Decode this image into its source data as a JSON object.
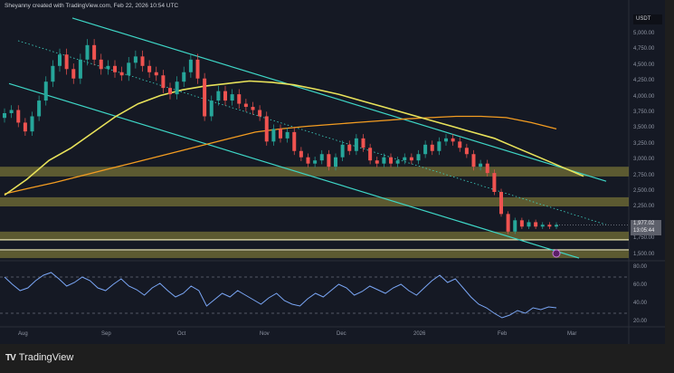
{
  "header": {
    "text": "Sheyanny created with TradingView.com, Feb 22, 2026 10:54 UTC"
  },
  "footer": {
    "logo_text": "TradingView"
  },
  "colors": {
    "background": "#151924",
    "bull": "#26a69a",
    "bear": "#ef5350",
    "channel": "#3ed6c6",
    "ma_fast": "#e8e25a",
    "ma_slow": "#f39c21",
    "zone": "#6e6a35",
    "rsi": "#7aa6f5"
  },
  "chart_data": [
    {
      "type": "candlestick",
      "title": "",
      "quote_unit": "USDT",
      "x_ticks": [
        "Aug",
        "Sep",
        "Oct",
        "Nov",
        "Dec",
        "2026",
        "Feb",
        "Mar"
      ],
      "y_ticks": [
        "5,000.00",
        "4,750.00",
        "4,500.00",
        "4,250.00",
        "4,000.00",
        "3,750.00",
        "3,500.00",
        "3,250.00",
        "3,000.00",
        "2,750.00",
        "2,500.00",
        "2,250.00",
        "1,750.00",
        "1,500.00"
      ],
      "ylim": [
        1400,
        5100
      ],
      "last_price": "1,977.02",
      "countdown": "13:05:44",
      "closes": [
        3750,
        3800,
        3600,
        3460,
        3700,
        3950,
        4250,
        4500,
        4680,
        4450,
        4300,
        4600,
        4830,
        4600,
        4450,
        4500,
        4400,
        4350,
        4550,
        4650,
        4500,
        4400,
        4350,
        4150,
        4050,
        4250,
        4400,
        4600,
        4300,
        3700,
        3950,
        4100,
        3950,
        4050,
        3900,
        3850,
        3800,
        3700,
        3300,
        3500,
        3350,
        3450,
        3150,
        3050,
        2950,
        3000,
        3100,
        2900,
        3050,
        3250,
        3150,
        3350,
        3200,
        3000,
        2950,
        3050,
        2950,
        3000,
        3050,
        3000,
        3100,
        3250,
        3150,
        3300,
        3350,
        3300,
        3200,
        3100,
        2900,
        2950,
        2800,
        2500,
        2150,
        1870,
        2050,
        1950,
        2020,
        1950,
        1980,
        1950,
        1977
      ],
      "ma_fast": [
        2450,
        2700,
        3000,
        3200,
        3450,
        3700,
        3900,
        4030,
        4120,
        4180,
        4220,
        4260,
        4240,
        4200,
        4130,
        4050,
        3950,
        3850,
        3750,
        3650,
        3550,
        3450,
        3350,
        3200,
        3050,
        2900,
        2750
      ],
      "ma_slow": [
        2470,
        2560,
        2650,
        2750,
        2850,
        2950,
        3050,
        3150,
        3250,
        3350,
        3450,
        3500,
        3540,
        3570,
        3600,
        3630,
        3660,
        3680,
        3700,
        3700,
        3680,
        3600,
        3500
      ],
      "channel_upper": [
        5260,
        2670
      ],
      "channel_mid": [
        4900,
        1980
      ],
      "channel_lower": [
        4220,
        1450
      ],
      "zones": [
        [
          2745,
          2900
        ],
        [
          2270,
          2415
        ],
        [
          1750,
          1870
        ],
        [
          1450,
          1565
        ]
      ],
      "support_lines": [
        1740,
        1580
      ]
    },
    {
      "type": "line",
      "title": "",
      "y_ticks": [
        "80.00",
        "60.00",
        "40.00",
        "20.00"
      ],
      "ylim": [
        10,
        90
      ],
      "levels": [
        70,
        30
      ],
      "values": [
        70,
        62,
        55,
        58,
        66,
        72,
        75,
        68,
        60,
        64,
        70,
        66,
        58,
        55,
        62,
        68,
        60,
        56,
        50,
        58,
        63,
        55,
        48,
        52,
        60,
        55,
        38,
        45,
        52,
        48,
        55,
        50,
        45,
        40,
        47,
        52,
        44,
        40,
        38,
        46,
        52,
        48,
        55,
        62,
        58,
        50,
        54,
        60,
        56,
        52,
        58,
        62,
        55,
        50,
        58,
        66,
        72,
        64,
        68,
        58,
        48,
        40,
        36,
        30,
        25,
        28,
        33,
        30,
        36,
        34,
        37,
        36
      ]
    }
  ]
}
